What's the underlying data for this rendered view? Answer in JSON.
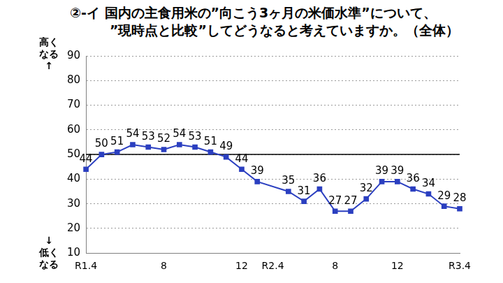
{
  "chart_data": {
    "type": "line",
    "title": [
      "②-イ 国内の主食用米の”向こう3ヶ月の米価水準”について、",
      "　　　”現時点と比較”してどうなると考えていますか。（全体）"
    ],
    "annotations": [
      [
        "高く",
        "なる",
        "↑"
      ],
      [
        "↓",
        "低く",
        "なる"
      ]
    ],
    "categories": [
      "R1.4",
      null,
      null,
      null,
      null,
      "8",
      null,
      null,
      null,
      null,
      "12",
      null,
      "R2.4",
      null,
      null,
      null,
      "8",
      null,
      null,
      null,
      "12",
      null,
      null,
      null,
      "R3.4"
    ],
    "values": [
      44,
      50,
      51,
      54,
      53,
      52,
      54,
      53,
      51,
      49,
      44,
      39,
      null,
      35,
      31,
      36,
      27,
      27,
      32,
      39,
      39,
      36,
      34,
      29,
      28
    ],
    "color": "#2b3fc0",
    "marker": "square",
    "data_labels": true,
    "ylim": [
      10,
      90
    ],
    "yticks": [
      10,
      20,
      30,
      40,
      50,
      60,
      70,
      80,
      90
    ],
    "grid": true
  }
}
